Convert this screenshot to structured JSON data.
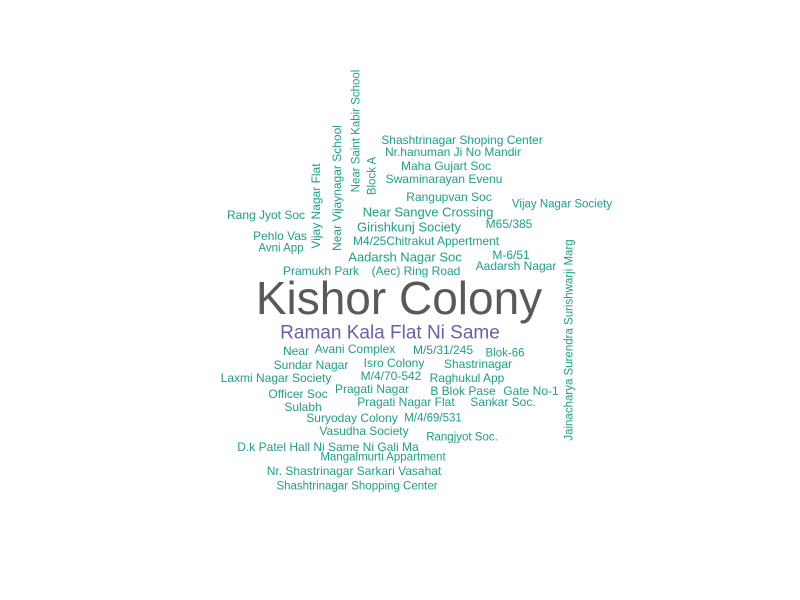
{
  "words": [
    "Kishor Colony",
    "Raman Kala Flat Ni Same",
    "Shashtrinagar Shoping Center",
    "Nr.hanuman Ji No Mandir",
    "Maha Gujart Soc",
    "Swaminarayan Evenu",
    "Rangupvan Soc",
    "Vijay Nagar Society",
    "Near Sangve Crossing",
    "M65/385",
    "Rang Jyot Soc",
    "Girishkunj Society",
    "Pehlo Vas",
    "M4/25Chitrakut Appertment",
    "Avni App",
    "Aadarsh Nagar Soc",
    "M-6/51",
    "Aadarsh Nagar",
    "Pramukh Park",
    "(Aec) Ring Road",
    "Near",
    "Avani Complex",
    "M/5/31/245",
    "Blok-66",
    "Sundar Nagar",
    "Isro Colony",
    "Shastrinagar",
    "Laxmi Nagar Society",
    "M/4/70-542",
    "Raghukul App",
    "Officer Soc",
    "Pragati Nagar",
    "B Blok Pase",
    "Gate No-1",
    "Sulabh",
    "Pragati Nagar Flat",
    "Sankar Soc.",
    "Suryoday Colony",
    "M/4/69/531",
    "Vasudha Society",
    "Rangjyot Soc.",
    "D.k Patel Hall Ni Same Ni Gali Ma",
    "Mangalmurti Appartment",
    "Nr. Shastrinagar Sarkari Vasahat",
    "Shashtrinagar Shopping Center",
    "Vijay Nagar Flat",
    "Near Vijaynagar School",
    "Near Saint Kabir School",
    "Block A",
    "Jainacharya Surendra Surishwarji Marg"
  ],
  "colors": {
    "dominant": "#595959",
    "secondary": "#6a5fa8",
    "default": "#1f9e89"
  }
}
